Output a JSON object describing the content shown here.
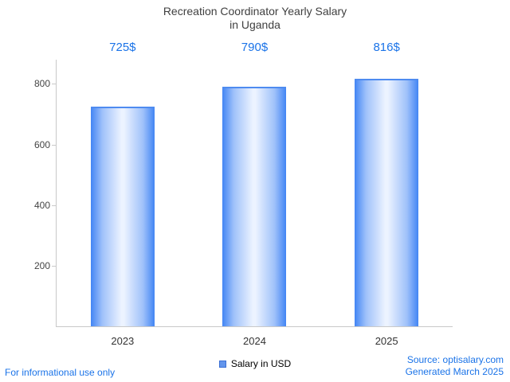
{
  "title_lines": [
    "Recreation Coordinator Yearly Salary",
    "in Uganda"
  ],
  "legend": {
    "label": "Salary in USD"
  },
  "footer": {
    "left": "For informational use only",
    "source": "Source: optisalary.com",
    "generated": "Generated March 2025"
  },
  "colors": {
    "accent_blue": "#1a73e8",
    "bar_edge": "#4285f4",
    "bar_center": "#ecf3ff",
    "axis": "#c9c9c9",
    "title_text": "#404040"
  },
  "chart_data": {
    "type": "bar",
    "title": "Recreation Coordinator Yearly Salary in Uganda",
    "categories": [
      "2023",
      "2024",
      "2025"
    ],
    "values": [
      725,
      790,
      816
    ],
    "value_labels": [
      "725$",
      "790$",
      "816$"
    ],
    "series_name": "Salary in USD",
    "xlabel": "",
    "ylabel": "",
    "ylim": [
      0,
      880
    ],
    "yticks": [
      200,
      400,
      600,
      800
    ],
    "grid": false,
    "legend_position": "bottom"
  }
}
